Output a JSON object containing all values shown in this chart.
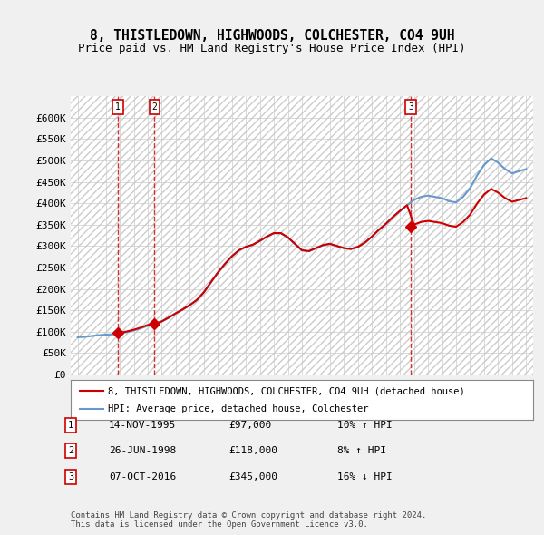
{
  "title_line1": "8, THISTLEDOWN, HIGHWOODS, COLCHESTER, CO4 9UH",
  "title_line2": "Price paid vs. HM Land Registry's House Price Index (HPI)",
  "ylabel": "",
  "xlabel": "",
  "ylim": [
    0,
    650000
  ],
  "yticks": [
    0,
    50000,
    100000,
    150000,
    200000,
    250000,
    300000,
    350000,
    400000,
    450000,
    500000,
    550000,
    600000
  ],
  "ytick_labels": [
    "£0",
    "£50K",
    "£100K",
    "£150K",
    "£200K",
    "£250K",
    "£300K",
    "£350K",
    "£400K",
    "£450K",
    "£500K",
    "£550K",
    "£600K"
  ],
  "legend_line1": "8, THISTLEDOWN, HIGHWOODS, COLCHESTER, CO4 9UH (detached house)",
  "legend_line2": "HPI: Average price, detached house, Colchester",
  "sale_color": "#cc0000",
  "hpi_color": "#6699cc",
  "transactions": [
    {
      "date_num": 1995.87,
      "price": 97000,
      "label": "1"
    },
    {
      "date_num": 1998.48,
      "price": 118000,
      "label": "2"
    },
    {
      "date_num": 2016.76,
      "price": 345000,
      "label": "3"
    }
  ],
  "table_rows": [
    {
      "num": "1",
      "date": "14-NOV-1995",
      "price": "£97,000",
      "hpi": "10% ↑ HPI"
    },
    {
      "num": "2",
      "date": "26-JUN-1998",
      "price": "£118,000",
      "hpi": "8% ↑ HPI"
    },
    {
      "num": "3",
      "date": "07-OCT-2016",
      "price": "£345,000",
      "hpi": "16% ↓ HPI"
    }
  ],
  "footnote": "Contains HM Land Registry data © Crown copyright and database right 2024.\nThis data is licensed under the Open Government Licence v3.0.",
  "background_color": "#f0f0f0",
  "plot_bg_color": "#ffffff",
  "hatch_color": "#d0d0d0"
}
